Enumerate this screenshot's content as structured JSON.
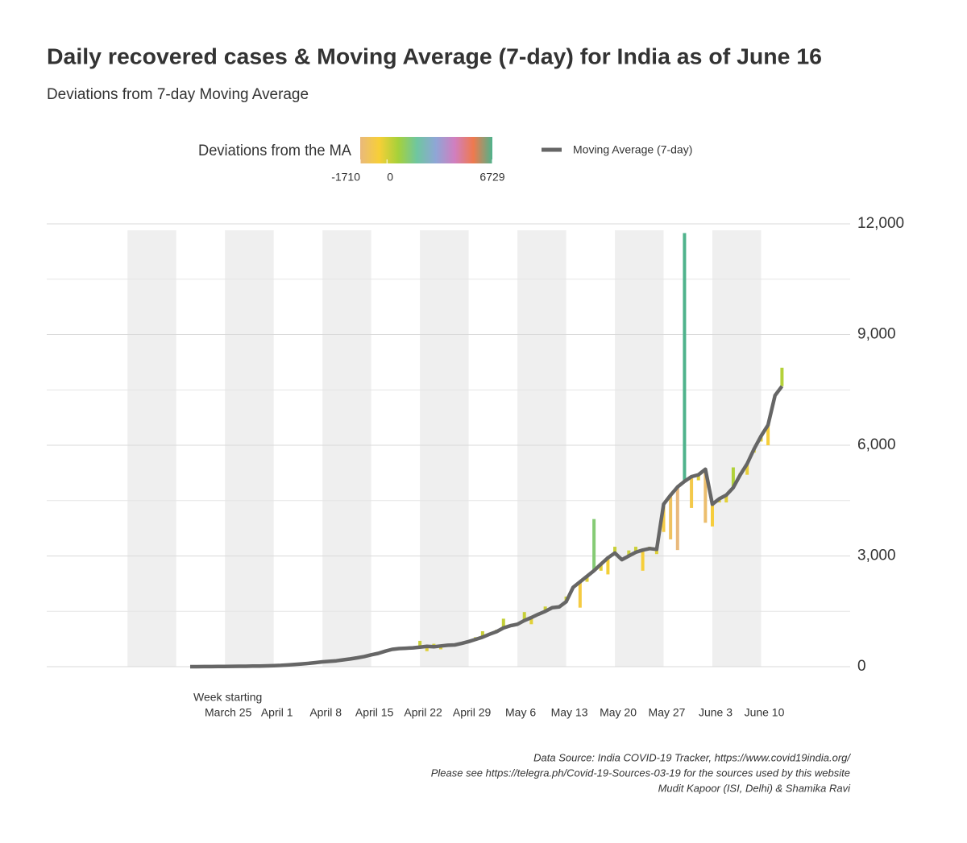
{
  "chart_data": {
    "type": "line",
    "title": "Daily recovered cases & Moving Average (7-day) for India as of June 16",
    "subtitle": "Deviations from 7-day Moving Average",
    "x_label": "Week starting",
    "categories": [
      null,
      null,
      null,
      null,
      null,
      "March 25",
      null,
      null,
      null,
      null,
      null,
      null,
      "April 1",
      null,
      null,
      null,
      null,
      null,
      null,
      "April 8",
      null,
      null,
      null,
      null,
      null,
      null,
      "April 15",
      null,
      null,
      null,
      null,
      null,
      null,
      "April 22",
      null,
      null,
      null,
      null,
      null,
      null,
      "April 29",
      null,
      null,
      null,
      null,
      null,
      null,
      "May 6",
      null,
      null,
      null,
      null,
      null,
      null,
      "May 13",
      null,
      null,
      null,
      null,
      null,
      null,
      "May 20",
      null,
      null,
      null,
      null,
      null,
      null,
      "May 27",
      null,
      null,
      null,
      null,
      null,
      null,
      "June 3",
      null,
      null,
      null,
      null,
      null,
      null,
      "June 10",
      null,
      null,
      null
    ],
    "series": [
      {
        "name": "Moving Average (7-day)",
        "color": "#666666",
        "values": [
          0,
          1,
          2,
          3,
          4,
          6,
          8,
          10,
          12,
          15,
          18,
          22,
          28,
          35,
          45,
          60,
          75,
          90,
          110,
          130,
          145,
          160,
          185,
          210,
          240,
          275,
          320,
          360,
          420,
          470,
          490,
          500,
          510,
          530,
          550,
          540,
          560,
          580,
          590,
          630,
          680,
          740,
          800,
          880,
          950,
          1050,
          1110,
          1150,
          1250,
          1330,
          1420,
          1500,
          1600,
          1620,
          1760,
          2150,
          2300,
          2450,
          2600,
          2780,
          2950,
          3080,
          2900,
          3000,
          3100,
          3160,
          3200,
          3180,
          4400,
          4650,
          4870,
          5021,
          5150,
          5200,
          5350,
          4400,
          4550,
          4650,
          4850,
          5200,
          5500,
          5900,
          6250,
          6550,
          7350,
          7600
        ]
      }
    ],
    "daily_values": [
      0,
      1,
      2,
      3,
      4,
      6,
      8,
      10,
      12,
      15,
      18,
      22,
      28,
      35,
      45,
      60,
      75,
      90,
      110,
      130,
      145,
      160,
      185,
      210,
      240,
      275,
      320,
      360,
      420,
      470,
      490,
      500,
      510,
      700,
      420,
      620,
      470,
      560,
      590,
      630,
      650,
      800,
      960,
      880,
      1000,
      1300,
      1110,
      1150,
      1480,
      1150,
      1420,
      1630,
      1600,
      1620,
      1900,
      2150,
      1600,
      2300,
      4000,
      2600,
      2500,
      3250,
      2900,
      3150,
      3250,
      2600,
      3250,
      3050,
      3650,
      3450,
      3160,
      11750,
      4300,
      5050,
      3900,
      3800,
      4450,
      4450,
      5400,
      5250,
      5200,
      5800,
      6100,
      6000,
      7350,
      8100
    ],
    "color_scale": {
      "title": "Deviations from the MA",
      "min": -1710,
      "max": 6729,
      "ticks": [
        -1710,
        0,
        6729
      ],
      "colors": [
        "#e9b97c",
        "#f7cf37",
        "#a6d13a",
        "#6fc6a0",
        "#8fa6d6",
        "#d07fc0",
        "#ee7a4e",
        "#4fb38c"
      ]
    },
    "ylim": [
      0,
      12000
    ],
    "yticks": [
      0,
      {
        "value": 3000,
        "label": "3,000"
      },
      {
        "value": 6000,
        "label": "6,000"
      },
      {
        "value": 9000,
        "label": "9,000"
      },
      {
        "value": 12000,
        "label": "12,000"
      }
    ],
    "grid": true,
    "source_lines": [
      "Data Source: India COVID-19 Tracker, https://www.covid19india.org/",
      "Please see https://telegra.ph/Covid-19-Sources-03-19 for the sources used by this website",
      "Mudit Kapoor (ISI, Delhi) & Shamika Ravi"
    ]
  }
}
